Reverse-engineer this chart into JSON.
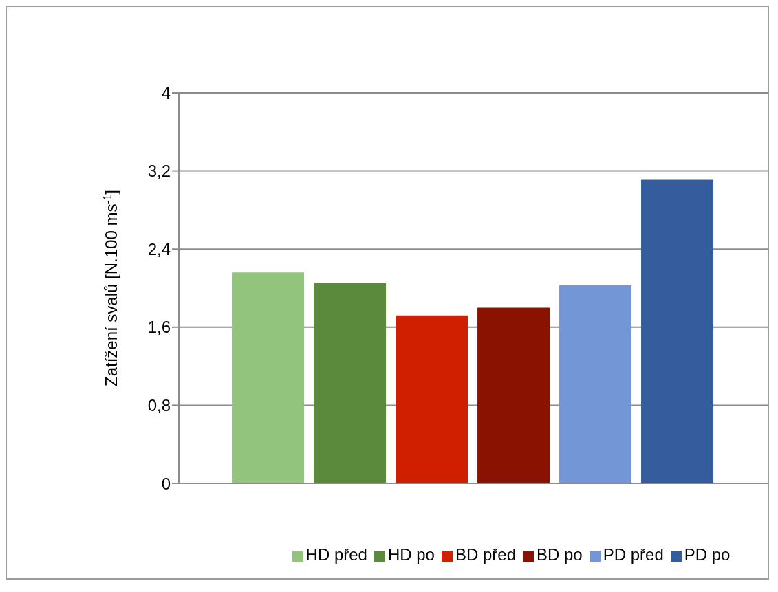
{
  "chart_data": {
    "type": "bar",
    "ylabel": "Zatížení svalů [N.100 ms$^{-1}$]",
    "categories": [
      null
    ],
    "series": [
      {
        "name": "HD před",
        "color": "#93c47d",
        "values": [
          2.16
        ]
      },
      {
        "name": "HD po",
        "color": "#5b8a3c",
        "values": [
          2.05
        ]
      },
      {
        "name": "BD před",
        "color": "#d01f00",
        "values": [
          1.72
        ]
      },
      {
        "name": "BD po",
        "color": "#8a1200",
        "values": [
          1.8
        ]
      },
      {
        "name": "PD před",
        "color": "#7396d6",
        "values": [
          2.03
        ]
      },
      {
        "name": "PD po",
        "color": "#355c9d",
        "values": [
          3.11
        ]
      }
    ],
    "ylim": [
      0,
      4
    ],
    "yticks": [
      0,
      {
        "value": 0.8,
        "label": "0,8"
      },
      {
        "value": 1.6,
        "label": "1,6"
      },
      {
        "value": 2.4,
        "label": "2,4"
      },
      {
        "value": 3.2,
        "label": "3,2"
      },
      4
    ],
    "grid": "y",
    "legend": "bottom"
  }
}
